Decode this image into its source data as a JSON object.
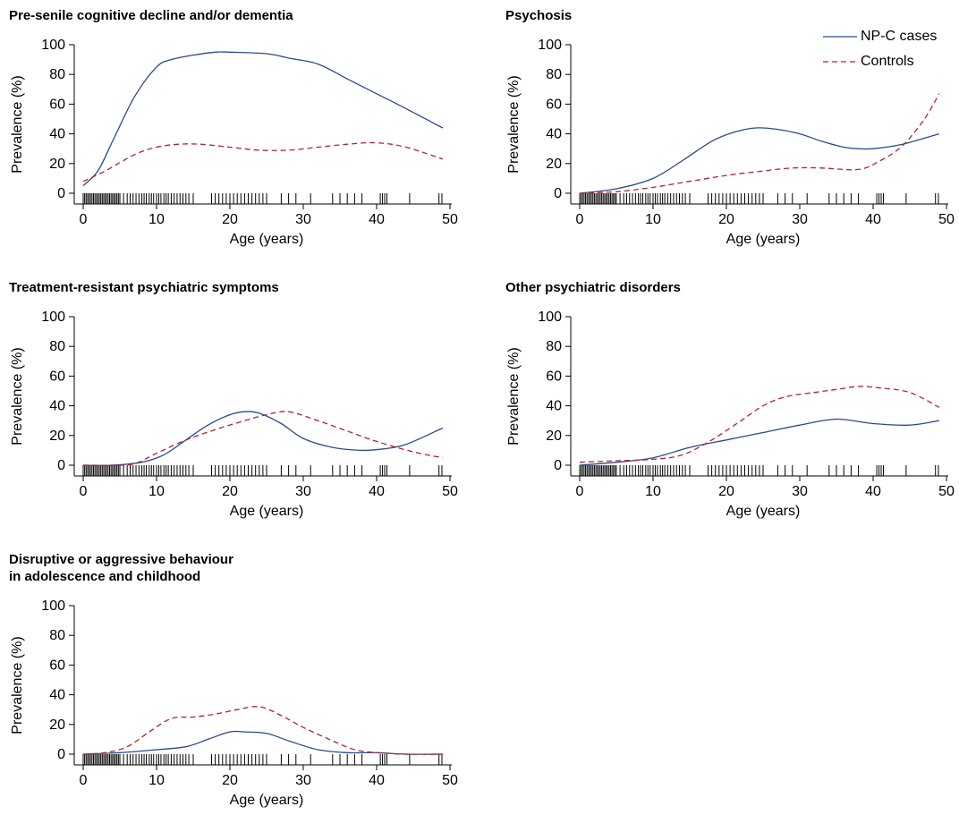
{
  "colors": {
    "cases": "#2b4a8c",
    "controls": "#b22234",
    "rug": "#000000"
  },
  "legend": [
    {
      "name": "NP-C cases",
      "style": "solid",
      "color": "#2b4a8c"
    },
    {
      "name": "Controls",
      "style": "dashed",
      "color": "#b22234"
    }
  ],
  "rug_ages": [
    0,
    0.2,
    0.4,
    0.6,
    0.8,
    1.0,
    1.2,
    1.4,
    1.6,
    1.8,
    2.0,
    2.2,
    2.4,
    2.6,
    2.8,
    3.0,
    3.2,
    3.4,
    3.6,
    3.8,
    4.0,
    4.2,
    4.4,
    4.6,
    4.8,
    5.0,
    5.5,
    6.0,
    6.4,
    6.8,
    7.2,
    7.6,
    8.0,
    8.3,
    8.6,
    9.0,
    9.3,
    9.6,
    10.0,
    10.3,
    10.6,
    11.0,
    11.3,
    11.6,
    12.0,
    12.4,
    12.8,
    13.2,
    13.6,
    14.0,
    14.4,
    15.0,
    17.5,
    18.0,
    18.5,
    19.0,
    19.5,
    20.0,
    20.5,
    21.0,
    21.5,
    22.0,
    22.5,
    23.0,
    23.5,
    24.0,
    24.5,
    25.0,
    27.0,
    28.0,
    29.0,
    31.0,
    34.0,
    35.0,
    36.0,
    37.0,
    38.0,
    40.5,
    40.8,
    41.1,
    41.4,
    44.5,
    48.5,
    48.9
  ],
  "chart_data": [
    {
      "type": "line",
      "title": "Pre-senile cognitive decline and/or dementia",
      "xlabel": "Age (years)",
      "ylabel": "Prevalence (%)",
      "xlim": [
        0,
        50
      ],
      "ylim": [
        0,
        100
      ],
      "xticks": [
        0,
        10,
        20,
        30,
        40,
        50
      ],
      "yticks": [
        0,
        20,
        40,
        60,
        80,
        100
      ],
      "grid": false,
      "series": [
        {
          "name": "NP-C cases",
          "style": "solid",
          "x": [
            0,
            2,
            4,
            7,
            10,
            12,
            15,
            18,
            20,
            25,
            28,
            32,
            36,
            40,
            44,
            49
          ],
          "y": [
            5,
            15,
            35,
            65,
            85,
            90,
            93,
            95,
            95,
            94,
            91,
            87,
            77,
            67,
            57,
            44
          ]
        },
        {
          "name": "Controls",
          "style": "dashed",
          "x": [
            0,
            3,
            7,
            10,
            13,
            16,
            20,
            24,
            28,
            32,
            36,
            40,
            44,
            49
          ],
          "y": [
            8,
            15,
            26,
            31,
            33,
            33,
            31,
            29,
            29,
            31,
            33,
            34,
            31,
            23
          ]
        }
      ]
    },
    {
      "type": "line",
      "title": "Psychosis",
      "xlabel": "Age (years)",
      "ylabel": "Prevalence (%)",
      "xlim": [
        0,
        50
      ],
      "ylim": [
        0,
        100
      ],
      "xticks": [
        0,
        10,
        20,
        30,
        40,
        50
      ],
      "yticks": [
        0,
        20,
        40,
        60,
        80,
        100
      ],
      "grid": false,
      "series": [
        {
          "name": "NP-C cases",
          "style": "solid",
          "x": [
            0,
            5,
            10,
            14,
            18,
            21,
            24,
            27,
            30,
            33,
            36,
            38,
            40,
            44,
            49
          ],
          "y": [
            0,
            3,
            10,
            22,
            35,
            41,
            44,
            43,
            40,
            35,
            31,
            30,
            30,
            33,
            40
          ]
        },
        {
          "name": "Controls",
          "style": "dashed",
          "x": [
            0,
            5,
            10,
            15,
            20,
            25,
            29,
            33,
            38,
            41,
            44,
            47,
            49
          ],
          "y": [
            0,
            1,
            4,
            8,
            12,
            15,
            17,
            17,
            16,
            22,
            32,
            50,
            67
          ]
        }
      ]
    },
    {
      "type": "line",
      "title": "Treatment-resistant psychiatric symptoms",
      "xlabel": "Age (years)",
      "ylabel": "Prevalence (%)",
      "xlim": [
        0,
        50
      ],
      "ylim": [
        0,
        100
      ],
      "xticks": [
        0,
        10,
        20,
        30,
        40,
        50
      ],
      "yticks": [
        0,
        20,
        40,
        60,
        80,
        100
      ],
      "grid": false,
      "series": [
        {
          "name": "NP-C cases",
          "style": "solid",
          "x": [
            0,
            4,
            8,
            11,
            14,
            17,
            20,
            22,
            24,
            27,
            30,
            34,
            38,
            41,
            44,
            49
          ],
          "y": [
            0,
            0,
            2,
            7,
            17,
            27,
            34,
            36,
            35,
            28,
            18,
            12,
            10,
            11,
            14,
            25
          ]
        },
        {
          "name": "Controls",
          "style": "dashed",
          "x": [
            0,
            4,
            7,
            10,
            14,
            18,
            22,
            25,
            28,
            32,
            36,
            40,
            45,
            49
          ],
          "y": [
            0,
            0,
            1,
            8,
            17,
            24,
            30,
            34,
            36,
            30,
            23,
            16,
            9,
            5
          ]
        }
      ]
    },
    {
      "type": "line",
      "title": "Other psychiatric disorders",
      "xlabel": "Age (years)",
      "ylabel": "Prevalence (%)",
      "xlim": [
        0,
        50
      ],
      "ylim": [
        0,
        100
      ],
      "xticks": [
        0,
        10,
        20,
        30,
        40,
        50
      ],
      "yticks": [
        0,
        20,
        40,
        60,
        80,
        100
      ],
      "grid": false,
      "series": [
        {
          "name": "NP-C cases",
          "style": "solid",
          "x": [
            0,
            5,
            10,
            15,
            20,
            25,
            30,
            35,
            40,
            45,
            49
          ],
          "y": [
            0,
            2,
            5,
            12,
            17,
            22,
            27,
            31,
            28,
            27,
            30
          ]
        },
        {
          "name": "Controls",
          "style": "dashed",
          "x": [
            0,
            5,
            10,
            14,
            18,
            22,
            25,
            28,
            32,
            35,
            38,
            41,
            45,
            49
          ],
          "y": [
            2,
            3,
            4,
            7,
            17,
            30,
            40,
            46,
            49,
            51,
            53,
            52,
            49,
            39
          ]
        }
      ]
    },
    {
      "type": "line",
      "title": "Disruptive or aggressive behaviour\nin adolescence and childhood",
      "xlabel": "Age (years)",
      "ylabel": "Prevalence (%)",
      "xlim": [
        0,
        50
      ],
      "ylim": [
        0,
        100
      ],
      "xticks": [
        0,
        10,
        20,
        30,
        40,
        50
      ],
      "yticks": [
        0,
        20,
        40,
        60,
        80,
        100
      ],
      "grid": false,
      "series": [
        {
          "name": "NP-C cases",
          "style": "solid",
          "x": [
            0,
            5,
            10,
            14,
            17,
            20,
            22,
            25,
            28,
            32,
            36,
            40,
            44,
            49
          ],
          "y": [
            0,
            1,
            3,
            5,
            10,
            15,
            15,
            14,
            9,
            3,
            1,
            1,
            0,
            0
          ]
        },
        {
          "name": "Controls",
          "style": "dashed",
          "x": [
            0,
            3,
            6,
            9,
            12,
            15,
            18,
            21,
            24,
            27,
            30,
            34,
            37,
            40,
            44,
            49
          ],
          "y": [
            0,
            1,
            5,
            15,
            24,
            25,
            27,
            30,
            32,
            26,
            18,
            9,
            3,
            1,
            0,
            0
          ]
        }
      ]
    }
  ]
}
